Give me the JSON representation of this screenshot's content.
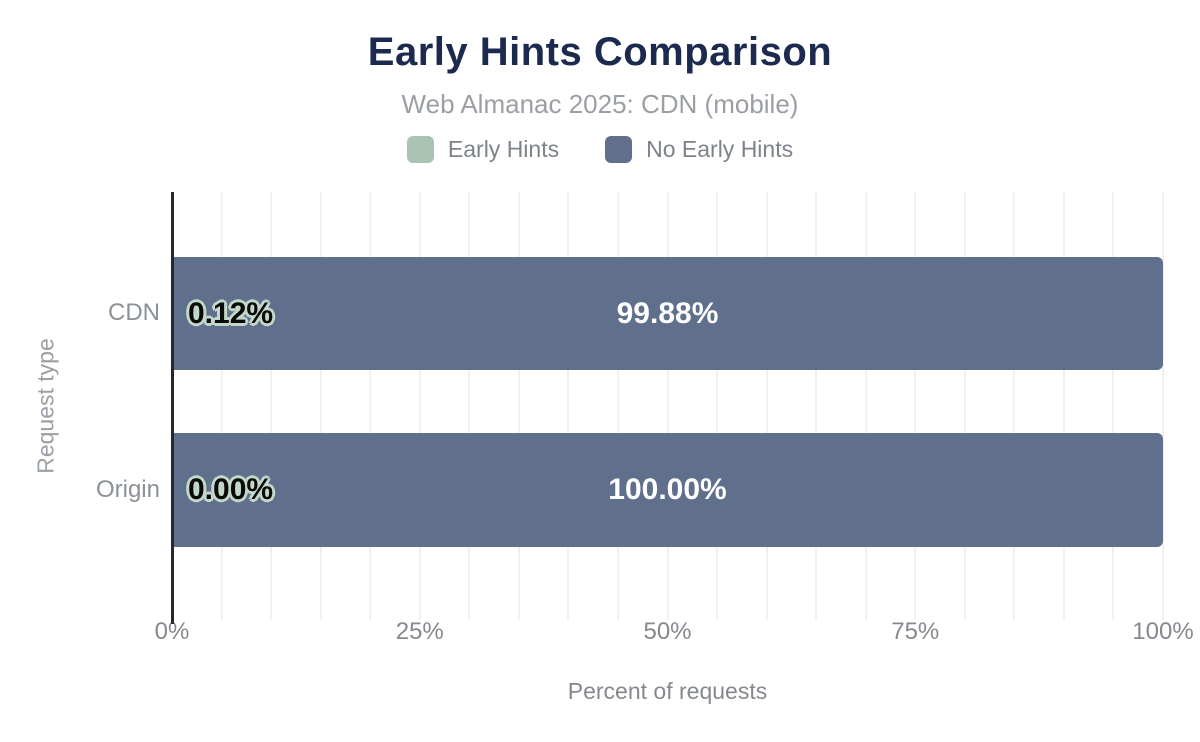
{
  "header": {
    "title": "Early Hints Comparison",
    "subtitle": "Web Almanac 2025: CDN (mobile)"
  },
  "legend": {
    "items": [
      {
        "label": "Early Hints",
        "color": "#a9c4b3"
      },
      {
        "label": "No Early Hints",
        "color": "#5f6f8c"
      }
    ]
  },
  "chart_data": {
    "type": "bar",
    "orientation": "horizontal",
    "stacked": true,
    "title": "Early Hints Comparison",
    "subtitle": "Web Almanac 2025: CDN (mobile)",
    "categories": [
      "CDN",
      "Origin"
    ],
    "series": [
      {
        "name": "Early Hints",
        "color": "#a9c4b3",
        "values": [
          0.12,
          0.0
        ],
        "labels": [
          "0.12%",
          "0.00%"
        ]
      },
      {
        "name": "No Early Hints",
        "color": "#5f6f8c",
        "values": [
          99.88,
          100.0
        ],
        "labels": [
          "99.88%",
          "100.00%"
        ]
      }
    ],
    "xlabel": "Percent of requests",
    "ylabel": "Request type",
    "xlim": [
      0,
      100
    ],
    "ticks": [
      0,
      25,
      50,
      75,
      100
    ],
    "tick_labels": [
      "0%",
      "25%",
      "50%",
      "75%",
      "100%"
    ],
    "grid": {
      "axis": "x",
      "step": 5,
      "color": "#f1f1f3"
    },
    "legend_position": "top"
  },
  "colors": {
    "title_navy": "#1b2a4e",
    "subtitle_gray": "#9b9fa4",
    "tick_gray": "#85898e",
    "category_gray": "#8b9196",
    "bar_slate": "#5f6f8c",
    "series_sage": "#a9c4b3",
    "label_outline_sage": "#c3d7ca",
    "axis_line": "#26282c",
    "gridline": "#f1f1f3"
  }
}
